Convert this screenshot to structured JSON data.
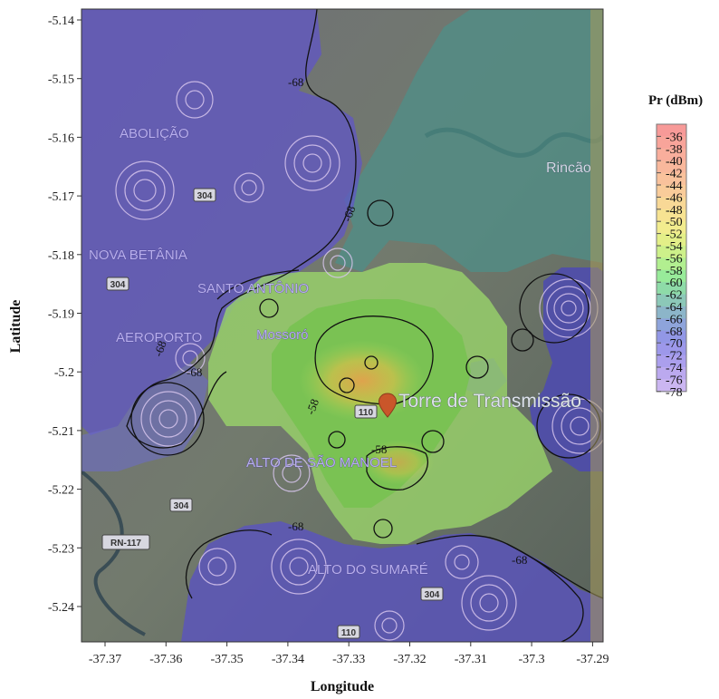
{
  "map": {
    "xlabel": "Longitude",
    "ylabel": "Latitude",
    "x_ticks": [
      "-37.37",
      "-37.36",
      "-37.35",
      "-37.34",
      "-37.33",
      "-37.32",
      "-37.31",
      "-37.3",
      "-37.29"
    ],
    "y_ticks": [
      "-5.14",
      "-5.15",
      "-5.16",
      "-5.17",
      "-5.18",
      "-5.19",
      "-5.2",
      "-5.21",
      "-5.22",
      "-5.23",
      "-5.24"
    ],
    "place_labels": [
      "ABOLIÇÃO",
      "NOVA BETÂNIA",
      "SANTO ANTÔNIO",
      "AEROPORTO",
      "Mossoró",
      "ALTO DE SÃO MANOEL",
      "ALTO DO SUMARÉ",
      "Rincão"
    ],
    "tower_label": "Torre de Transmissão",
    "road_shields": [
      "304",
      "304",
      "304",
      "110",
      "110",
      "304",
      "RN-117"
    ],
    "contour_labels": [
      "-68",
      "-68",
      "-68",
      "-58",
      "-58",
      "-68",
      "-68",
      "-68"
    ]
  },
  "colorbar": {
    "title": "Pr (dBm)",
    "values": [
      "-36",
      "-38",
      "-40",
      "-42",
      "-44",
      "-46",
      "-48",
      "-50",
      "-52",
      "-54",
      "-56",
      "-58",
      "-60",
      "-62",
      "-64",
      "-66",
      "-68",
      "-70",
      "-72",
      "-74",
      "-76",
      "-78"
    ],
    "colors": [
      "#f79a98",
      "#f8a49a",
      "#f9ae9c",
      "#f9b89c",
      "#f9c29c",
      "#f9cc9a",
      "#f8d896",
      "#f7e392",
      "#f2ec8e",
      "#e3ef88",
      "#cdf08a",
      "#b2ef90",
      "#98eb9a",
      "#8edba8",
      "#8cc8b8",
      "#8cb5c9",
      "#8ea4db",
      "#9297e6",
      "#9d98ea",
      "#ab9fed",
      "#bba9ef",
      "#cbb6f1"
    ]
  }
}
